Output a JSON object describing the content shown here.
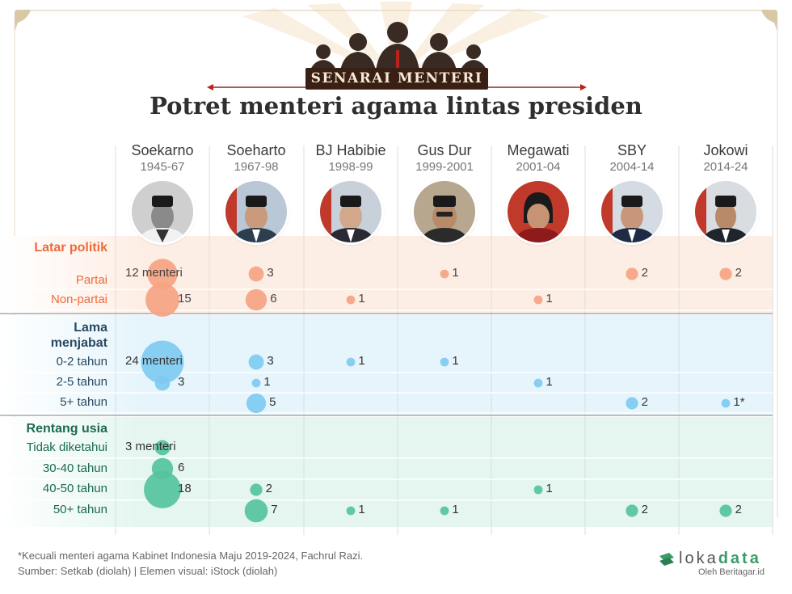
{
  "header": {
    "banner": "SENARAI MENTERI",
    "title": "Potret menteri agama lintas presiden"
  },
  "presidents": [
    {
      "name": "Soekarno",
      "years": "1945-67"
    },
    {
      "name": "Soeharto",
      "years": "1967-98"
    },
    {
      "name": "BJ Habibie",
      "years": "1998-99"
    },
    {
      "name": "Gus Dur",
      "years": "1999-2001"
    },
    {
      "name": "Megawati",
      "years": "2001-04"
    },
    {
      "name": "SBY",
      "years": "2004-14"
    },
    {
      "name": "Jokowi",
      "years": "2014-24"
    }
  ],
  "sections": [
    {
      "label": "Latar politik",
      "color": "#ee6a3a",
      "fill": "#f6a383"
    },
    {
      "label": "Lama menjabat",
      "color": "#2a4a63",
      "fill": "#7fcaf2"
    },
    {
      "label": "Rentang usia",
      "color": "#1b6a53",
      "fill": "#56c3a0"
    }
  ],
  "chart_data": {
    "type": "bubble-matrix",
    "title": "Potret menteri agama lintas presiden",
    "columns": [
      "Soekarno",
      "Soeharto",
      "BJ Habibie",
      "Gus Dur",
      "Megawati",
      "SBY",
      "Jokowi"
    ],
    "rows": [
      {
        "section": 0,
        "label": "Partai",
        "values": [
          12,
          3,
          null,
          1,
          null,
          2,
          2
        ],
        "labels": [
          "12 menteri",
          "3",
          "",
          "1",
          "",
          "2",
          "2"
        ]
      },
      {
        "section": 0,
        "label": "Non-partai",
        "values": [
          15,
          6,
          1,
          null,
          1,
          null,
          null
        ],
        "labels": [
          "15",
          "6",
          "1",
          "",
          "1",
          "",
          ""
        ]
      },
      {
        "section": 1,
        "label": "0-2 tahun",
        "values": [
          24,
          3,
          1,
          1,
          null,
          null,
          null
        ],
        "labels": [
          "24 menteri",
          "3",
          "1",
          "1",
          "",
          "",
          ""
        ]
      },
      {
        "section": 1,
        "label": "2-5 tahun",
        "values": [
          3,
          1,
          null,
          null,
          1,
          null,
          null
        ],
        "labels": [
          "3",
          "1",
          "",
          "",
          "1",
          "",
          ""
        ]
      },
      {
        "section": 1,
        "label": "5+ tahun",
        "values": [
          null,
          5,
          null,
          null,
          null,
          2,
          1
        ],
        "labels": [
          "",
          "5",
          "",
          "",
          "",
          "2",
          "1*"
        ]
      },
      {
        "section": 2,
        "label": "Tidak diketahui",
        "values": [
          3,
          null,
          null,
          null,
          null,
          null,
          null
        ],
        "labels": [
          "3 menteri",
          "",
          "",
          "",
          "",
          "",
          ""
        ]
      },
      {
        "section": 2,
        "label": "30-40 tahun",
        "values": [
          6,
          null,
          null,
          null,
          null,
          null,
          null
        ],
        "labels": [
          "6",
          "",
          "",
          "",
          "",
          "",
          ""
        ]
      },
      {
        "section": 2,
        "label": "40-50 tahun",
        "values": [
          18,
          2,
          null,
          null,
          1,
          null,
          null
        ],
        "labels": [
          "18",
          "2",
          "",
          "",
          "1",
          "",
          ""
        ]
      },
      {
        "section": 2,
        "label": "50+ tahun",
        "values": [
          null,
          7,
          1,
          1,
          null,
          2,
          2
        ],
        "labels": [
          "",
          "7",
          "1",
          "1",
          "",
          "2",
          "2"
        ]
      }
    ]
  },
  "footer": {
    "footnote": "*Kecuali menteri agama Kabinet Indonesia Maju 2019-2024, Fachrul Razi.",
    "source": "Sumber: Setkab (diolah) | Elemen visual: iStock (diolah)",
    "logo_a": "loka",
    "logo_b": "data",
    "logo_sub": "Oleh Beritagar.id"
  }
}
